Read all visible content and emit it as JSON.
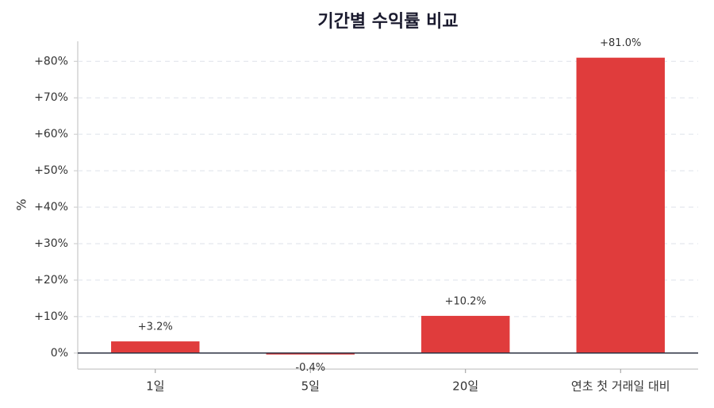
{
  "chart_data": {
    "type": "bar",
    "title": "기간별 수익률 비교",
    "y_label": "%",
    "categories": [
      "1일",
      "5일",
      "20일",
      "연초 첫 거래일 대비"
    ],
    "values": [
      3.2,
      -0.4,
      10.2,
      81.0
    ],
    "value_labels": [
      "+3.2%",
      "-0.4%",
      "+10.2%",
      "+81.0%"
    ],
    "color": "#e03c3c",
    "ylim": [
      -4.4,
      85.5
    ],
    "yticks": [
      {
        "value": 0,
        "label": "0%"
      },
      {
        "value": 10,
        "label": "+10%"
      },
      {
        "value": 20,
        "label": "+20%"
      },
      {
        "value": 30,
        "label": "+30%"
      },
      {
        "value": 40,
        "label": "+40%"
      },
      {
        "value": 50,
        "label": "+50%"
      },
      {
        "value": 60,
        "label": "+60%"
      },
      {
        "value": 70,
        "label": "+70%"
      },
      {
        "value": 80,
        "label": "+80%"
      }
    ],
    "grid": true
  }
}
